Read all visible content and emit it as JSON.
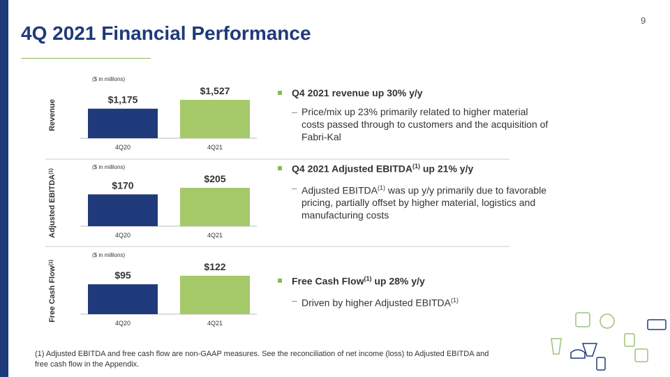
{
  "page_number": "9",
  "title": "4Q 2021 Financial Performance",
  "chart_data": [
    {
      "type": "bar",
      "subtitle": "($ in millions)",
      "ylabel": [
        "Revenue"
      ],
      "categories": [
        "4Q20",
        "4Q21"
      ],
      "values": [
        1175,
        1527
      ],
      "value_labels": [
        "$1,175",
        "$1,527"
      ],
      "colors": [
        "#1f3a7a",
        "#a6c96a"
      ]
    },
    {
      "type": "bar",
      "subtitle": "($ in millions)",
      "ylabel": [
        "Adjusted EBITDA",
        "(1)"
      ],
      "categories": [
        "4Q20",
        "4Q21"
      ],
      "values": [
        170,
        205
      ],
      "value_labels": [
        "$170",
        "$205"
      ],
      "colors": [
        "#1f3a7a",
        "#a6c96a"
      ]
    },
    {
      "type": "bar",
      "subtitle": "($ in millions)",
      "ylabel": [
        "Free Cash Flow",
        "(1)"
      ],
      "categories": [
        "4Q20",
        "4Q21"
      ],
      "values": [
        95,
        122
      ],
      "value_labels": [
        "$95",
        "$122"
      ],
      "colors": [
        "#1f3a7a",
        "#a6c96a"
      ]
    }
  ],
  "bullets": [
    {
      "heading": [
        "Q4 2021 revenue up 30% y/y"
      ],
      "detail": [
        "Price/mix up 23% primarily related to higher material costs passed through to customers and the acquisition of Fabri-Kal"
      ]
    },
    {
      "heading": [
        "Q4 2021 Adjusted EBITDA",
        "(1)",
        " up 21% y/y"
      ],
      "detail": [
        "Adjusted EBITDA",
        "(1)",
        " was up y/y primarily due to favorable pricing, partially offset by higher material, logistics and manufacturing costs"
      ]
    },
    {
      "heading": [
        "Free Cash Flow",
        "(1)",
        " up 28% y/y"
      ],
      "detail": [
        "Driven by higher Adjusted EBITDA",
        "(1)"
      ]
    }
  ],
  "footnote": "(1) Adjusted EBITDA and free cash flow are non-GAAP measures. See the reconciliation of net income (loss) to Adjusted EBITDA and free cash flow in the Appendix."
}
